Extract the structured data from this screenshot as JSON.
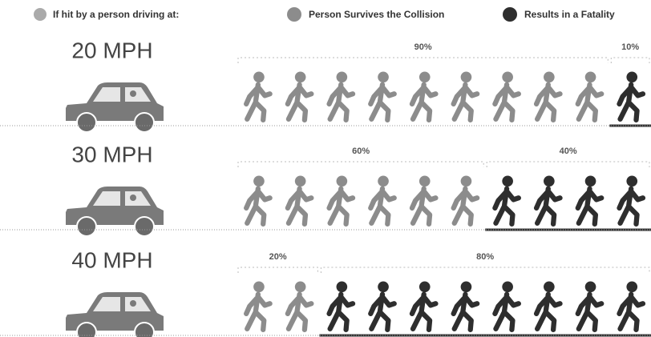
{
  "chart_data": {
    "type": "pictograph",
    "legend_title": "If hit by a person driving at:",
    "categories": [
      "20 MPH",
      "30 MPH",
      "40 MPH"
    ],
    "series": [
      {
        "name": "Person Survives the Collision",
        "color": "#8c8c8c",
        "values": [
          90,
          60,
          20
        ],
        "value_labels": [
          "90%",
          "60%",
          "20%"
        ]
      },
      {
        "name": "Results in a Fatality",
        "color": "#2e2e2e",
        "values": [
          10,
          40,
          80
        ],
        "value_labels": [
          "10%",
          "40%",
          "80%"
        ]
      }
    ],
    "xlim": [
      0,
      100
    ]
  }
}
